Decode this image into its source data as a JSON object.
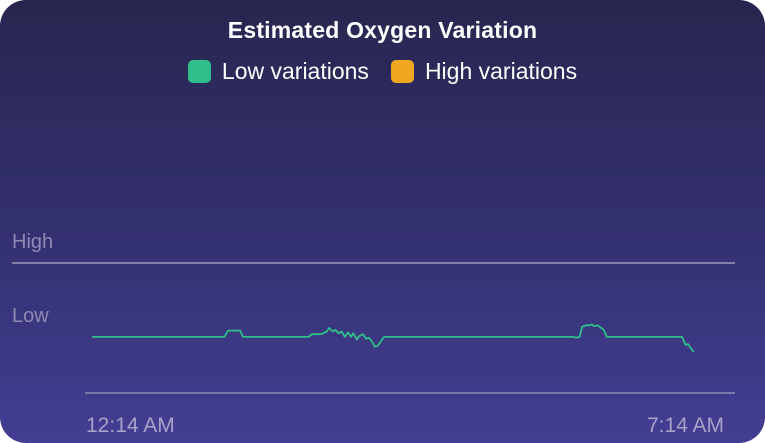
{
  "chart_data": {
    "type": "line",
    "title": "Estimated Oxygen Variation",
    "legend": [
      {
        "label": "Low variations",
        "color": "#2fbf8a"
      },
      {
        "label": "High variations",
        "color": "#f2a723"
      }
    ],
    "y_levels": [
      "High",
      "Low"
    ],
    "x_tick_labels": [
      "12:14 AM",
      "7:14 AM"
    ],
    "x_range": [
      "12:14 AM",
      "7:14 AM"
    ],
    "legend_position": "top-center",
    "series": [
      {
        "name": "Low variations",
        "color": "#2fbf8a",
        "x": [
          0.0,
          0.22,
          0.226,
          0.231,
          0.246,
          0.251,
          0.36,
          0.365,
          0.38,
          0.39,
          0.394,
          0.4,
          0.404,
          0.41,
          0.415,
          0.42,
          0.425,
          0.43,
          0.434,
          0.44,
          0.444,
          0.45,
          0.455,
          0.46,
          0.465,
          0.47,
          0.475,
          0.48,
          0.485,
          0.49,
          0.8,
          0.804,
          0.81,
          0.814,
          0.82,
          0.826,
          0.83,
          0.834,
          0.84,
          0.85,
          0.855,
          0.86,
          0.86,
          0.98,
          0.986,
          0.99,
          0.996,
          1.0
        ],
        "y": [
          0.17,
          0.17,
          0.24,
          0.24,
          0.24,
          0.17,
          0.17,
          0.2,
          0.2,
          0.23,
          0.27,
          0.23,
          0.25,
          0.21,
          0.23,
          0.17,
          0.22,
          0.17,
          0.21,
          0.14,
          0.18,
          0.2,
          0.15,
          0.16,
          0.12,
          0.06,
          0.07,
          0.12,
          0.17,
          0.17,
          0.17,
          0.16,
          0.17,
          0.28,
          0.3,
          0.3,
          0.31,
          0.29,
          0.3,
          0.25,
          0.17,
          0.17,
          0.17,
          0.17,
          0.08,
          0.09,
          0.03,
          0.0
        ],
        "value_scale": "0 = lowest variation, 1 = High"
      }
    ]
  }
}
